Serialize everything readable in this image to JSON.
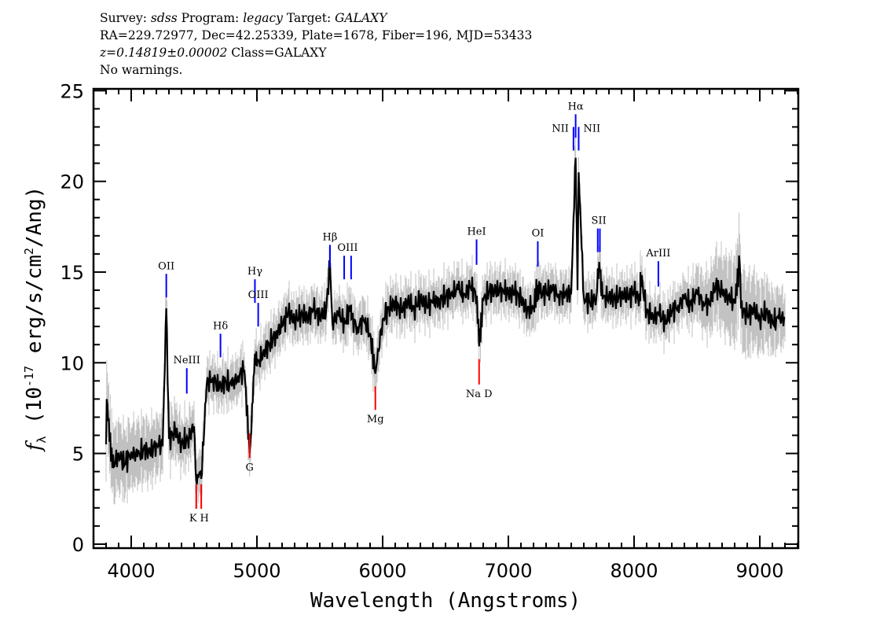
{
  "header": {
    "line1": {
      "survey_label": "Survey: ",
      "survey": "sdss",
      "program_label": " Program: ",
      "program": "legacy",
      "target_label": " Target: ",
      "target": "GALAXY"
    },
    "line2": "RA=229.72977, Dec=42.25339, Plate=1678, Fiber=196, MJD=53433",
    "line3": {
      "redshift": "z=0.14819±0.00002",
      "class": " Class=GALAXY"
    },
    "line4": "No warnings."
  },
  "chart_data": {
    "type": "line",
    "xlabel": "Wavelength (Angstroms)",
    "ylabel_main": "f",
    "ylabel_sub": "λ",
    "ylabel_rest": " (10",
    "ylabel_exp": "-17",
    "ylabel_rest2": " erg/s/cm",
    "ylabel_exp2": "2",
    "ylabel_rest3": "/Ang)",
    "xlim": [
      3700,
      9306
    ],
    "ylim": [
      -0.22,
      25.1
    ],
    "x_ticks": [
      4000,
      5000,
      6000,
      7000,
      8000,
      9000
    ],
    "y_ticks": [
      0,
      5,
      10,
      15,
      20,
      25
    ],
    "grid": false,
    "colors": {
      "flux": "#000000",
      "raw": "#c0c0c0",
      "emission": "#0000ff",
      "absorption": "#ff0000"
    },
    "x_start": 3800,
    "x_step": 50,
    "flux": [
      5.5,
      4.2,
      5.0,
      4.4,
      5.1,
      4.8,
      5.3,
      5.0,
      5.6,
      5.4,
      5.8,
      6.2,
      5.6,
      5.8,
      6.5,
      4.0,
      8.8,
      9.2,
      8.6,
      9.0,
      8.7,
      9.3,
      9.6,
      5.8,
      9.8,
      10.6,
      11.0,
      11.6,
      12.0,
      12.8,
      12.3,
      12.7,
      12.5,
      12.9,
      12.6,
      12.8,
      12.3,
      12.6,
      12.2,
      12.4,
      12.0,
      12.3,
      11.6,
      9.8,
      12.4,
      13.0,
      13.3,
      12.8,
      13.4,
      13.0,
      13.5,
      13.2,
      13.3,
      13.5,
      13.6,
      13.9,
      14.0,
      13.8,
      14.2,
      13.7,
      13.4,
      14.0,
      13.9,
      14.1,
      13.8,
      13.9,
      13.5,
      12.9,
      13.1,
      13.8,
      13.9,
      14.0,
      13.8,
      13.7,
      13.9,
      14.0,
      13.6,
      13.3,
      13.6,
      13.5,
      13.7,
      13.5,
      13.8,
      13.6,
      13.9,
      13.4,
      12.8,
      12.6,
      12.6,
      12.3,
      12.8,
      13.2,
      13.5,
      13.3,
      13.8,
      13.4,
      13.2,
      14.3,
      13.8,
      13.7,
      13.3,
      13.0,
      12.6,
      12.9,
      12.5,
      12.8,
      12.3,
      12.4,
      12.5
    ],
    "features": [
      [
        3805,
        8.0
      ],
      [
        4279,
        13.0
      ],
      [
        4517,
        3.5
      ],
      [
        4557,
        3.6
      ],
      [
        4942,
        5.0
      ],
      [
        4984,
        10.5
      ],
      [
        5581,
        15.5
      ],
      [
        5749,
        13.2
      ],
      [
        5942,
        9.4
      ],
      [
        6767,
        10.9
      ],
      [
        7234,
        14.3
      ],
      [
        7518,
        18.0
      ],
      [
        7535,
        21.3
      ],
      [
        7559,
        20.5
      ],
      [
        7711,
        15.2
      ],
      [
        7728,
        15.0
      ],
      [
        8050,
        15.0
      ],
      [
        8840,
        15.5
      ]
    ],
    "raw_spread": [
      [
        3800,
        2.2
      ],
      [
        4600,
        1.3
      ],
      [
        8400,
        1.2
      ],
      [
        8800,
        2.6
      ],
      [
        9200,
        1.6
      ]
    ],
    "lines": [
      {
        "label": "OII",
        "type": "emission",
        "wavelengths": [
          4279
        ],
        "y": [
          13.6,
          14.9
        ]
      },
      {
        "label": "NeIII",
        "type": "emission",
        "wavelengths": [
          4442
        ],
        "y": [
          8.3,
          9.7
        ]
      },
      {
        "label": "Hδ",
        "type": "emission",
        "wavelengths": [
          4710
        ],
        "y": [
          10.3,
          11.6
        ]
      },
      {
        "label": "Hγ",
        "type": "emission",
        "wavelengths": [
          4984
        ],
        "y": [
          13.3,
          14.6
        ]
      },
      {
        "label": "OIII",
        "type": "emission",
        "wavelengths": [
          5010
        ],
        "y": [
          12.0,
          13.3
        ]
      },
      {
        "label": "Hβ",
        "type": "emission",
        "wavelengths": [
          5581
        ],
        "y": [
          15.25,
          16.5
        ]
      },
      {
        "label": "OIII",
        "type": "emission",
        "wavelengths": [
          5694,
          5749
        ],
        "y": [
          14.6,
          15.9
        ]
      },
      {
        "label": "HeI",
        "type": "emission",
        "wavelengths": [
          6747
        ],
        "y": [
          15.4,
          16.8
        ]
      },
      {
        "label": "OI",
        "type": "emission",
        "wavelengths": [
          7234
        ],
        "y": [
          15.3,
          16.7
        ]
      },
      {
        "label": "NII",
        "type": "emission",
        "wavelengths": [
          7518
        ],
        "y": [
          21.7,
          23.0
        ]
      },
      {
        "label": "Hα",
        "type": "emission",
        "wavelengths": [
          7535
        ],
        "y": [
          22.4,
          23.7
        ]
      },
      {
        "label": "NII",
        "type": "emission",
        "wavelengths": [
          7559
        ],
        "y": [
          21.7,
          23.0
        ]
      },
      {
        "label": "SII",
        "type": "emission",
        "wavelengths": [
          7711,
          7728
        ],
        "y": [
          16.1,
          17.4
        ]
      },
      {
        "label": "ArIII",
        "type": "emission",
        "wavelengths": [
          8193
        ],
        "y": [
          14.2,
          15.6
        ]
      },
      {
        "label": "K",
        "type": "absorption",
        "wavelengths": [
          4517
        ],
        "y": [
          1.95,
          3.3
        ]
      },
      {
        "label": "H",
        "type": "absorption",
        "wavelengths": [
          4557
        ],
        "y": [
          1.95,
          3.3
        ]
      },
      {
        "label": "G",
        "type": "absorption",
        "wavelengths": [
          4942
        ],
        "y": [
          4.75,
          6.1
        ]
      },
      {
        "label": "Mg",
        "type": "absorption",
        "wavelengths": [
          5942
        ],
        "y": [
          7.4,
          8.7
        ]
      },
      {
        "label": "Na D",
        "type": "absorption",
        "wavelengths": [
          6767
        ],
        "y": [
          8.8,
          10.2
        ]
      }
    ]
  }
}
